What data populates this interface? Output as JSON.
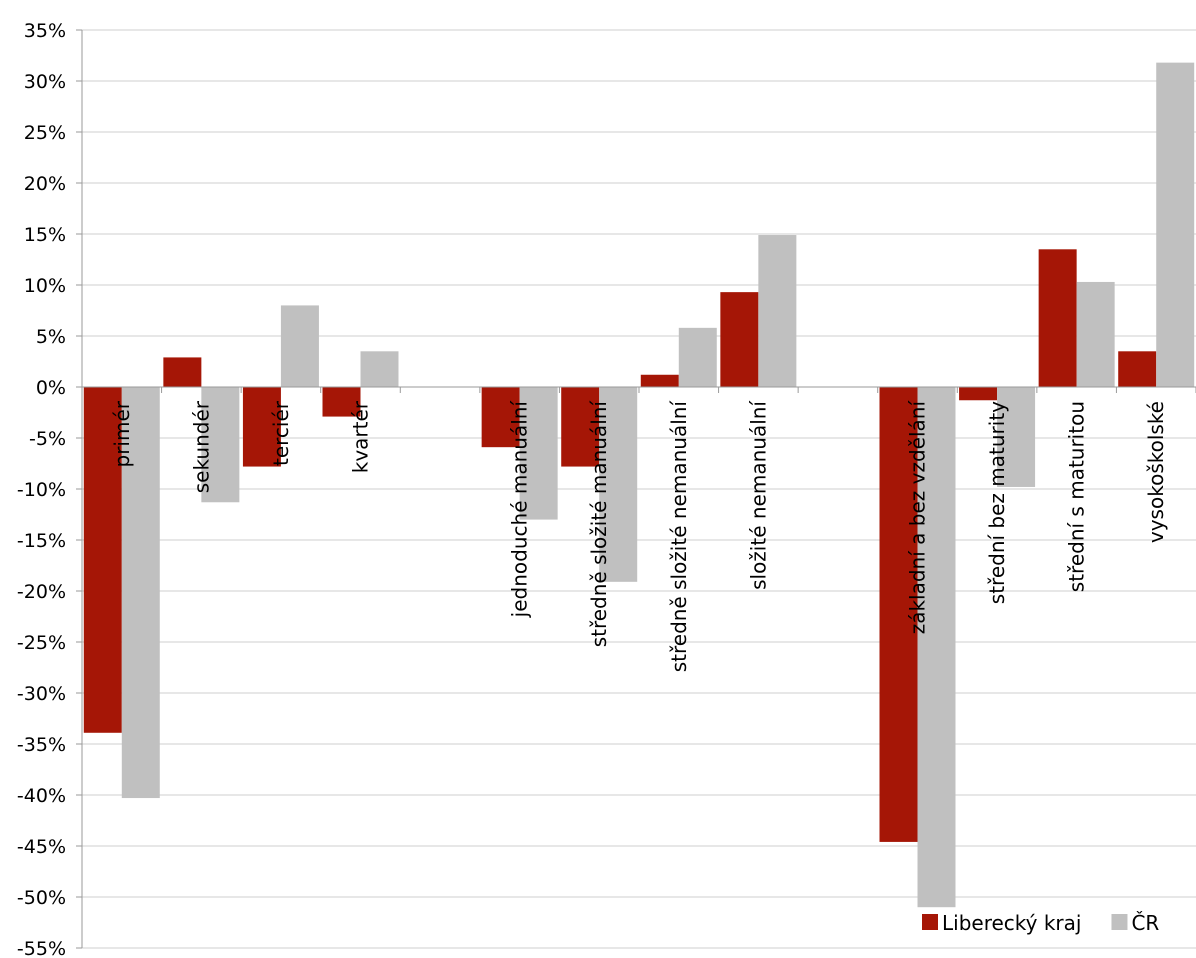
{
  "chart_data": {
    "type": "bar",
    "categories": [
      "primér",
      "sekundér",
      "terciér",
      "kvartér",
      "",
      "jednoduché manuální",
      "středně složité manuální",
      "středně složité nemanuální",
      "složité nemanuální",
      "",
      "základní a bez vzdělání",
      "střední bez maturity",
      "střední s maturitou",
      "vysokoškolské"
    ],
    "series": [
      {
        "name": "Liberecký kraj",
        "color": "#a51606",
        "values": [
          -33.9,
          2.9,
          -7.8,
          -2.9,
          null,
          -5.9,
          -7.8,
          1.2,
          9.3,
          null,
          -44.6,
          -1.3,
          13.5,
          3.5
        ]
      },
      {
        "name": "ČR",
        "color": "#c0c0c0",
        "values": [
          -40.3,
          -11.3,
          8.0,
          3.5,
          null,
          -13.0,
          -19.1,
          5.8,
          14.9,
          null,
          -51.0,
          -9.8,
          10.3,
          31.8
        ]
      }
    ],
    "y_ticks": [
      "35%",
      "30%",
      "25%",
      "20%",
      "15%",
      "10%",
      "5%",
      "0%",
      "-5%",
      "-10%",
      "-15%",
      "-20%",
      "-25%",
      "-30%",
      "-35%",
      "-40%",
      "-45%",
      "-50%",
      "-55%"
    ],
    "ylim": [
      -55,
      35
    ],
    "y_step": 5,
    "grid": true,
    "legend": "bottom-right",
    "title": "",
    "xlabel": "",
    "ylabel": ""
  }
}
